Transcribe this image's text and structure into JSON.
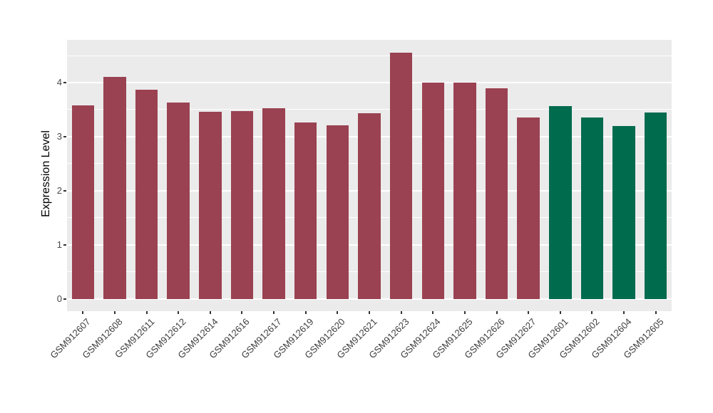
{
  "chart_data": {
    "type": "bar",
    "title": "",
    "ylabel": "Expression Level",
    "xlabel": "",
    "categories": [
      "GSM912607",
      "GSM912608",
      "GSM912611",
      "GSM912612",
      "GSM912614",
      "GSM912616",
      "GSM912617",
      "GSM912619",
      "GSM912620",
      "GSM912621",
      "GSM912623",
      "GSM912624",
      "GSM912625",
      "GSM912626",
      "GSM912627",
      "GSM912601",
      "GSM912602",
      "GSM912604",
      "GSM912605"
    ],
    "values": [
      3.58,
      4.11,
      3.87,
      3.63,
      3.46,
      3.47,
      3.52,
      3.26,
      3.21,
      3.43,
      4.55,
      4.0,
      4.0,
      3.9,
      3.36,
      3.57,
      3.36,
      3.19,
      3.44
    ],
    "bar_colors": [
      "#9A4252",
      "#9A4252",
      "#9A4252",
      "#9A4252",
      "#9A4252",
      "#9A4252",
      "#9A4252",
      "#9A4252",
      "#9A4252",
      "#9A4252",
      "#9A4252",
      "#9A4252",
      "#9A4252",
      "#9A4252",
      "#9A4252",
      "#016B4E",
      "#016B4E",
      "#016B4E",
      "#016B4E"
    ],
    "palette": {
      "maroon": "#9A4252",
      "green": "#016B4E"
    },
    "ylim": [
      -0.23,
      4.79
    ],
    "yticks": [
      "0",
      "1",
      "2",
      "3",
      "4"
    ],
    "ytick_values": [
      0,
      1,
      2,
      3,
      4
    ],
    "y_minor_tick_values": [
      0.5,
      1.5,
      2.5,
      3.5,
      4.5
    ],
    "grid": true,
    "legend": "none",
    "panel_background": "#EBEBEB",
    "grid_color": "#FFFFFF",
    "tick_color": "#333333",
    "tick_label_color": "#4a4a4a"
  }
}
